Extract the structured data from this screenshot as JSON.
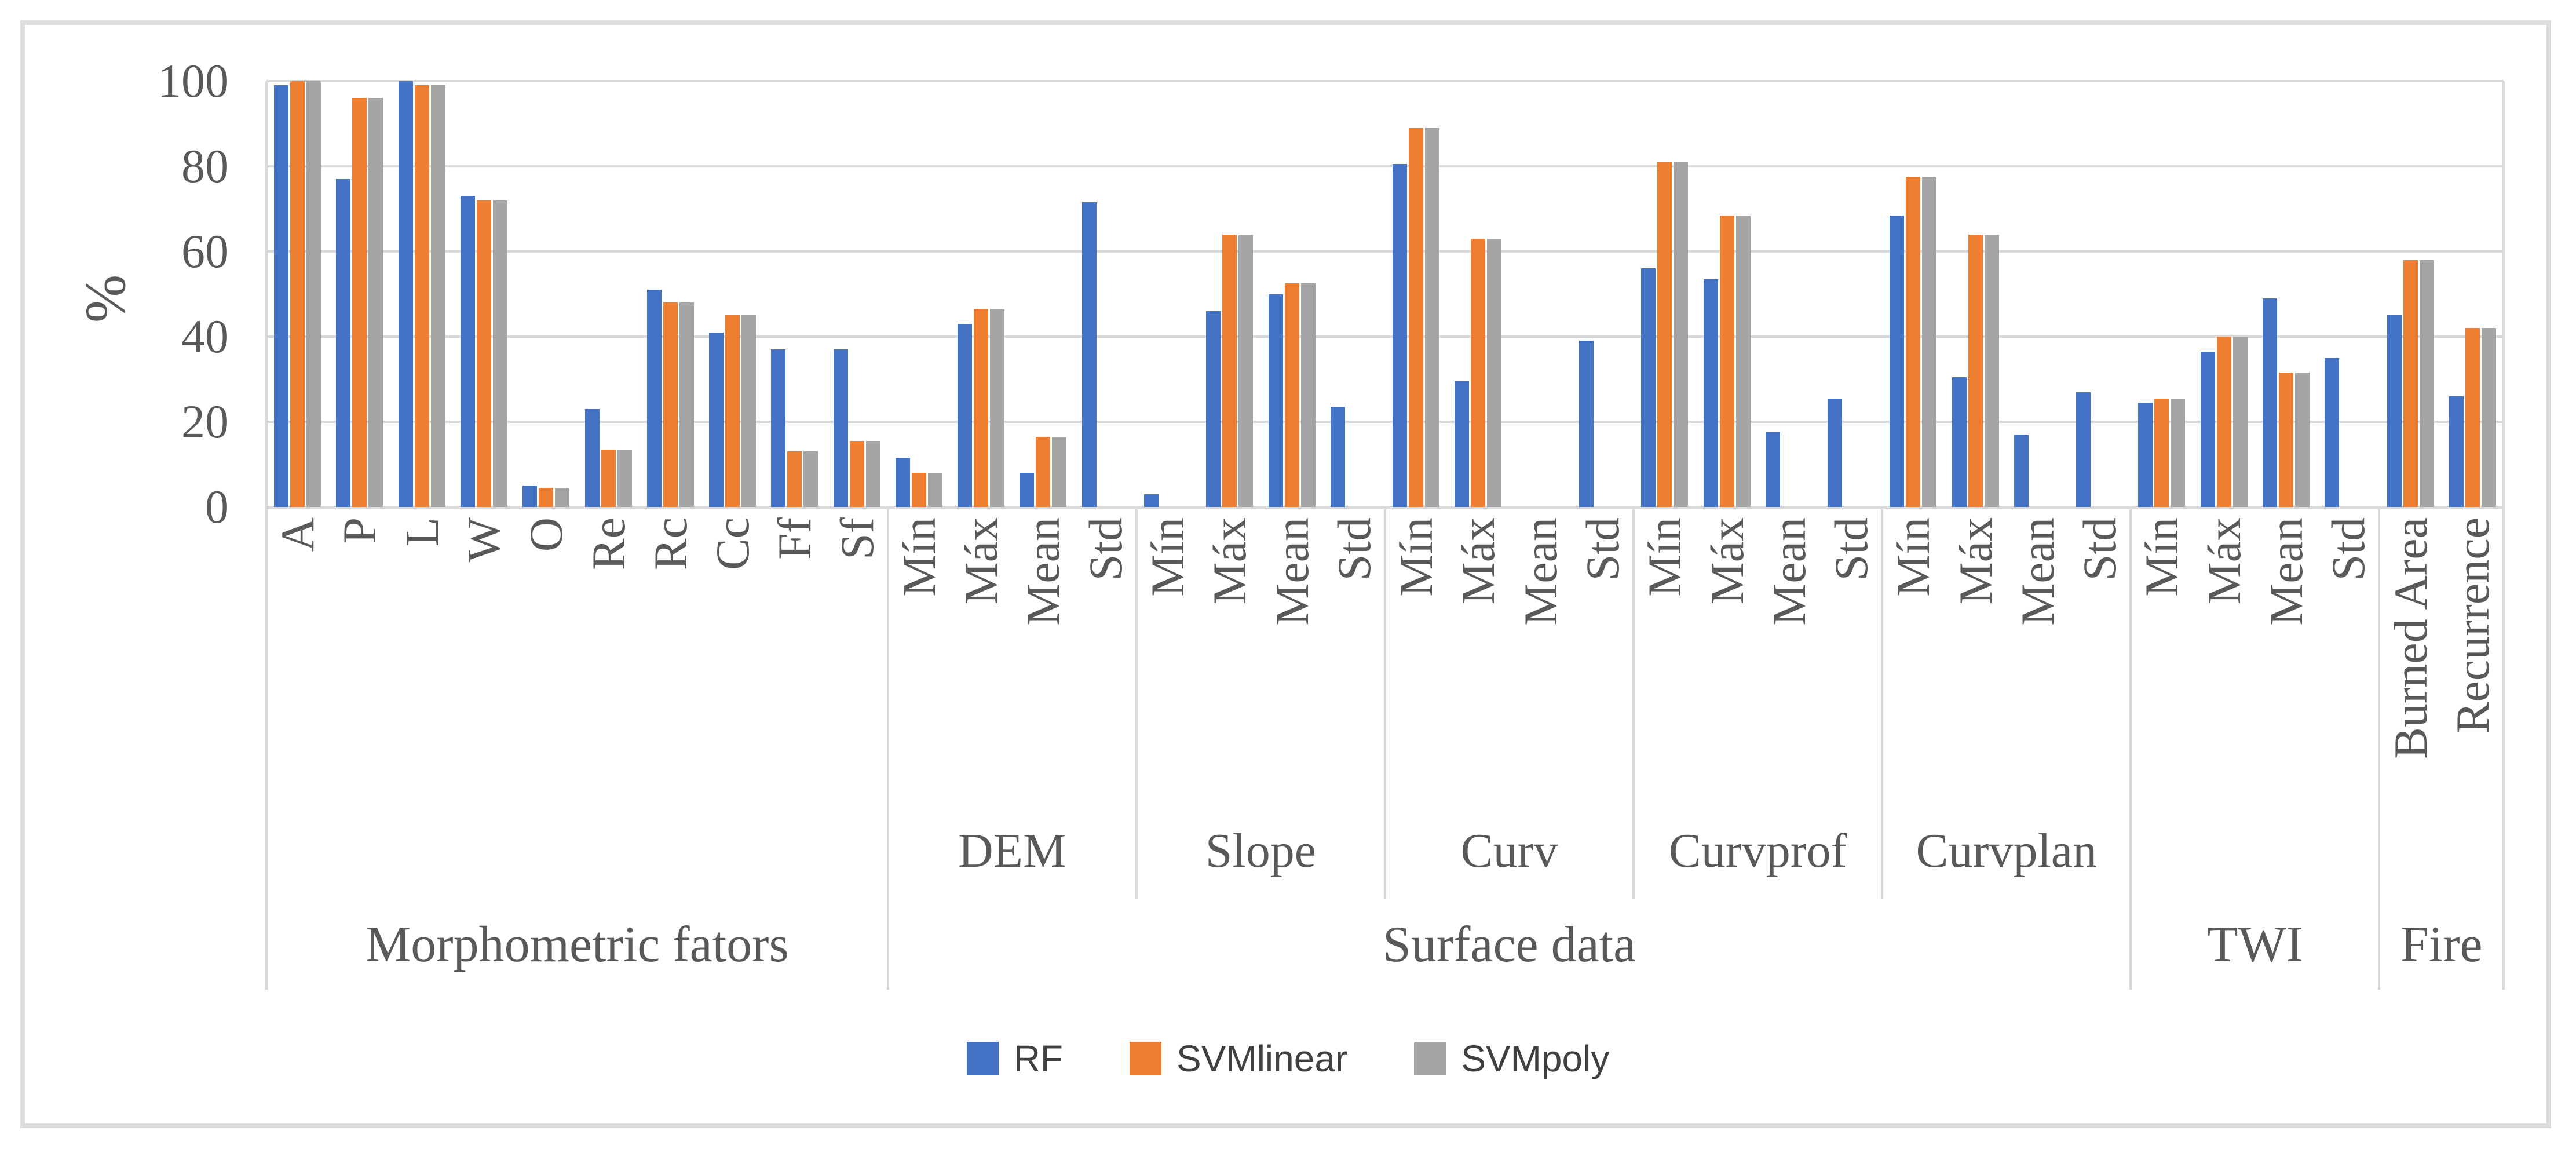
{
  "figure": {
    "background": "#FFFFFF",
    "border_color": "#DBDBDB",
    "gridline_color": "#D9D9D9",
    "axis_text_color": "#595959",
    "legend_text_color": "#404040"
  },
  "chart_data": {
    "type": "bar",
    "title": "",
    "ylabel": "%",
    "xlabel": "",
    "ylim": [
      0,
      100
    ],
    "yticks": [
      0,
      20,
      40,
      60,
      80,
      100
    ],
    "grid": true,
    "legend_position": "bottom",
    "series": [
      {
        "name": "RF",
        "color": "#4472C4"
      },
      {
        "name": "SVMlinear",
        "color": "#ED7D31"
      },
      {
        "name": "SVMpoly",
        "color": "#A5A5A5"
      }
    ],
    "categories": [
      {
        "label": "Morphometric fators",
        "groups": [
          {
            "label": "A",
            "values": [
              99,
              100,
              100
            ]
          },
          {
            "label": "P",
            "values": [
              77,
              96,
              96
            ]
          },
          {
            "label": "L",
            "values": [
              100,
              99,
              99
            ]
          },
          {
            "label": "W",
            "values": [
              73,
              72,
              72
            ]
          },
          {
            "label": "O",
            "values": [
              5,
              4.5,
              4.5
            ]
          },
          {
            "label": "Re",
            "values": [
              23,
              13.5,
              13.5
            ]
          },
          {
            "label": "Rc",
            "values": [
              51,
              48,
              48
            ]
          },
          {
            "label": "Cc",
            "values": [
              41,
              45,
              45
            ]
          },
          {
            "label": "Ff",
            "values": [
              37,
              13,
              13
            ]
          },
          {
            "label": "Sf",
            "values": [
              37,
              15.5,
              15.5
            ]
          }
        ]
      },
      {
        "label": "Surface data",
        "subcategories": [
          {
            "label": "DEM",
            "groups": [
              {
                "label": "Mín",
                "values": [
                  11.5,
                  8,
                  8
                ]
              },
              {
                "label": "Máx",
                "values": [
                  43,
                  46.5,
                  46.5
                ]
              },
              {
                "label": "Mean",
                "values": [
                  8,
                  16.5,
                  16.5
                ]
              },
              {
                "label": "Std",
                "values": [
                  71.5,
                  0,
                  0
                ]
              }
            ]
          },
          {
            "label": "Slope",
            "groups": [
              {
                "label": "Mín",
                "values": [
                  3,
                  0,
                  0
                ]
              },
              {
                "label": "Máx",
                "values": [
                  46,
                  64,
                  64
                ]
              },
              {
                "label": "Mean",
                "values": [
                  50,
                  52.5,
                  52.5
                ]
              },
              {
                "label": "Std",
                "values": [
                  23.5,
                  0,
                  0
                ]
              }
            ]
          },
          {
            "label": "Curv",
            "groups": [
              {
                "label": "Mín",
                "values": [
                  80.5,
                  89,
                  89
                ]
              },
              {
                "label": "Máx",
                "values": [
                  29.5,
                  63,
                  63
                ]
              },
              {
                "label": "Mean",
                "values": [
                  0,
                  0,
                  0
                ]
              },
              {
                "label": "Std",
                "values": [
                  39,
                  0,
                  0
                ]
              }
            ]
          },
          {
            "label": "Curvprof",
            "groups": [
              {
                "label": "Mín",
                "values": [
                  56,
                  81,
                  81
                ]
              },
              {
                "label": "Máx",
                "values": [
                  53.5,
                  68.5,
                  68.5
                ]
              },
              {
                "label": "Mean",
                "values": [
                  17.5,
                  0,
                  0
                ]
              },
              {
                "label": "Std",
                "values": [
                  25.5,
                  0,
                  0
                ]
              }
            ]
          },
          {
            "label": "Curvplan",
            "groups": [
              {
                "label": "Mín",
                "values": [
                  68.5,
                  77.5,
                  77.5
                ]
              },
              {
                "label": "Máx",
                "values": [
                  30.5,
                  64,
                  64
                ]
              },
              {
                "label": "Mean",
                "values": [
                  17,
                  0,
                  0
                ]
              },
              {
                "label": "Std",
                "values": [
                  27,
                  0,
                  0
                ]
              }
            ]
          }
        ]
      },
      {
        "label": "TWI",
        "groups": [
          {
            "label": "Mín",
            "values": [
              24.5,
              25.5,
              25.5
            ]
          },
          {
            "label": "Máx",
            "values": [
              36.5,
              40,
              40
            ]
          },
          {
            "label": "Mean",
            "values": [
              49,
              31.5,
              31.5
            ]
          },
          {
            "label": "Std",
            "values": [
              35,
              0,
              0
            ]
          }
        ]
      },
      {
        "label": "Fire",
        "groups": [
          {
            "label": "Burned Area",
            "values": [
              45,
              58,
              58
            ]
          },
          {
            "label": "Recurrence",
            "values": [
              26,
              42,
              42
            ]
          }
        ]
      }
    ],
    "legend_entries": [
      "RF",
      "SVMlinear",
      "SVMpoly"
    ]
  }
}
